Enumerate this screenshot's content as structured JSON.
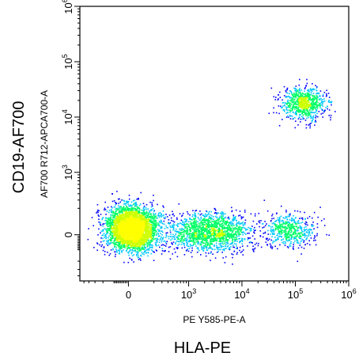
{
  "chart_data": {
    "type": "scatter",
    "subtype": "flow-cytometry-density-dot-plot",
    "x_parameter": "PE Y585-PE-A",
    "y_parameter": "AF700 R712-APCA700-A",
    "x_marker_label": "HLA-PE",
    "y_marker_label": "CD19-AF700",
    "x_scale": "biexponential",
    "y_scale": "biexponential",
    "x_ticks": [
      {
        "value": 0,
        "base": "0",
        "exp": ""
      },
      {
        "value": 1000,
        "base": "10",
        "exp": "3"
      },
      {
        "value": 10000,
        "base": "10",
        "exp": "4"
      },
      {
        "value": 100000,
        "base": "10",
        "exp": "5"
      },
      {
        "value": 1000000,
        "base": "10",
        "exp": "6"
      }
    ],
    "y_ticks": [
      {
        "value": 0,
        "base": "0",
        "exp": ""
      },
      {
        "value": 1000,
        "base": "10",
        "exp": "3"
      },
      {
        "value": 10000,
        "base": "10",
        "exp": "4"
      },
      {
        "value": 100000,
        "base": "10",
        "exp": "5"
      },
      {
        "value": 1000000,
        "base": "10",
        "exp": "6"
      }
    ],
    "xlim": [
      -600,
      1000000
    ],
    "ylim": [
      -500,
      1000000
    ],
    "grid": false,
    "legend": "none",
    "color_scale": [
      "#0000ff",
      "#00c8ff",
      "#00ff66",
      "#ccff00",
      "#ffff00"
    ],
    "populations": [
      {
        "center": [
          20,
          40
        ],
        "spread": [
          0.55,
          0.45
        ],
        "share": 0.55
      },
      {
        "center": [
          2500,
          20
        ],
        "spread": [
          0.9,
          0.4
        ],
        "share": 0.25
      },
      {
        "center": [
          80000,
          30
        ],
        "spread": [
          0.55,
          0.35
        ],
        "share": 0.08
      },
      {
        "center": [
          140000,
          18000
        ],
        "spread": [
          0.45,
          0.35
        ],
        "share": 0.12
      }
    ]
  }
}
